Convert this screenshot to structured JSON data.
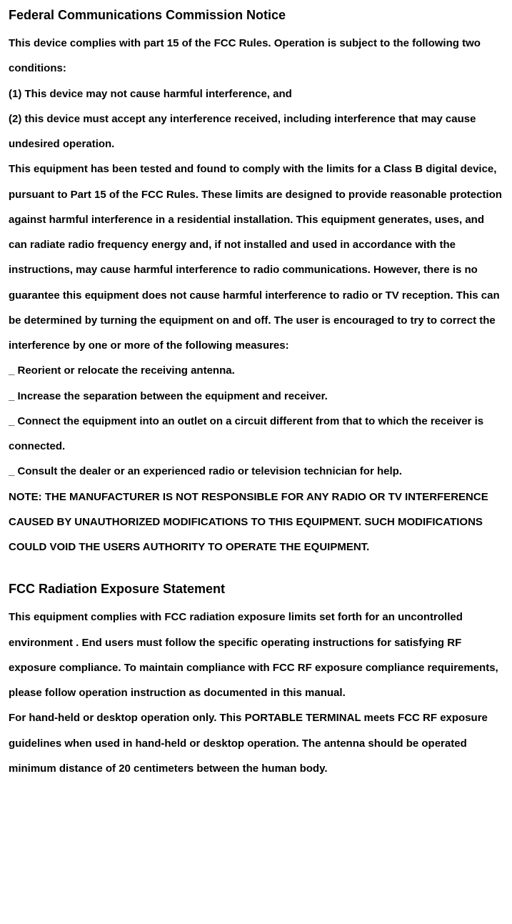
{
  "colors": {
    "text": "#000000",
    "background": "#ffffff"
  },
  "typography": {
    "heading_fontsize": 18,
    "body_fontsize": 15,
    "font_family": "Arial, Helvetica, sans-serif",
    "font_weight": "bold",
    "line_height": 2.35
  },
  "section1": {
    "heading": "Federal Communications Commission Notice",
    "p1": "This device complies with part 15 of the FCC Rules. Operation is subject to the following two conditions:",
    "p2": "(1) This device may not cause harmful interference, and",
    "p3": "(2) this device must accept any interference received, including interference that may cause undesired operation.",
    "p4": "This equipment has been tested and found to comply with the limits for a Class B digital device, pursuant to Part 15 of the FCC Rules. These limits are designed to provide reasonable protection against harmful interference in a residential installation. This equipment generates, uses, and can radiate radio frequency energy and, if not installed and used in accordance with the instructions, may cause harmful interference to radio communications. However, there is no guarantee this equipment does not cause harmful interference to radio or TV reception. This can be determined by turning the equipment on and off. The user is encouraged to try to correct the interference by one or more of the following measures:",
    "b1": "_ Reorient or relocate the receiving antenna.",
    "b2": "_ Increase the separation between the equipment and receiver.",
    "b3": "_ Connect the equipment into an outlet on a circuit different from that to which the receiver is connected.",
    "b4": "_ Consult the dealer or an experienced radio or television technician for help.",
    "note": "NOTE: THE MANUFACTURER IS NOT RESPONSIBLE FOR ANY RADIO OR TV INTERFERENCE CAUSED BY UNAUTHORIZED MODIFICATIONS TO THIS EQUIPMENT. SUCH MODIFICATIONS COULD VOID THE USERS AUTHORITY TO OPERATE THE EQUIPMENT."
  },
  "section2": {
    "heading": "FCC Radiation Exposure Statement",
    "p1": "This equipment complies with FCC radiation exposure limits set forth for an uncontrolled environment . End users must follow the specific operating instructions for satisfying RF exposure compliance. To maintain compliance with FCC RF exposure compliance requirements, please follow operation instruction as documented in this manual.",
    "p2": "For hand-held or desktop operation only. This PORTABLE TERMINAL meets FCC RF exposure guidelines when used in hand-held or desktop operation. The antenna should be operated minimum distance of 20 centimeters between the human body."
  }
}
